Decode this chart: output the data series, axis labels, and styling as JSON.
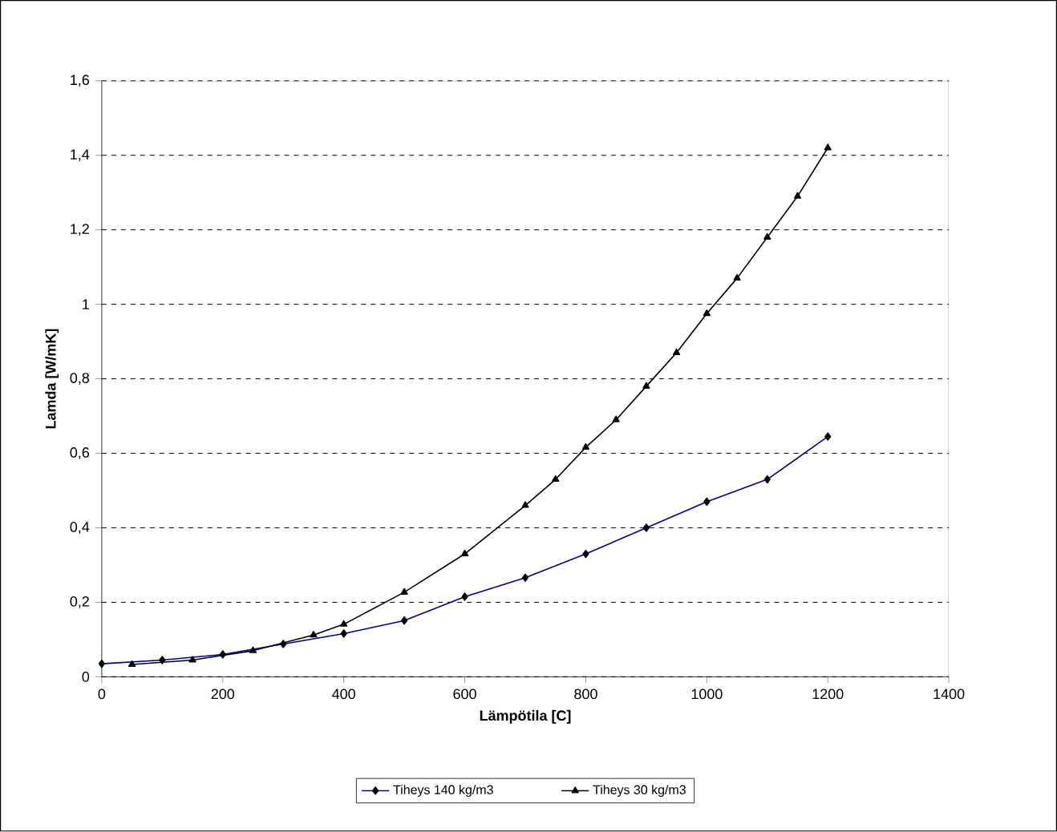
{
  "chart_data": {
    "type": "line",
    "xlabel": "Lämpötila [C]",
    "ylabel": "Lamda [W/mK]",
    "xlim": [
      0,
      1400
    ],
    "xticks": [
      0,
      200,
      400,
      600,
      800,
      1000,
      1200,
      1400
    ],
    "ylim": [
      0,
      1.6
    ],
    "yticks": [
      0,
      {
        "value": 0.2,
        "label": "0,2"
      },
      {
        "value": 0.4,
        "label": "0,4"
      },
      {
        "value": 0.6,
        "label": "0,6"
      },
      {
        "value": 0.8,
        "label": "0,8"
      },
      1,
      {
        "value": 1.2,
        "label": "1,2"
      },
      {
        "value": 1.4,
        "label": "1,4"
      },
      {
        "value": 1.6,
        "label": "1,6"
      }
    ],
    "grid": "y",
    "legend": "bottom",
    "series": [
      {
        "name": "Tiheys 140 kg/m3",
        "color": "#000080",
        "marker": "diamond",
        "x": [
          0,
          100,
          200,
          300,
          400,
          500,
          600,
          700,
          800,
          900,
          1000,
          1100,
          1200
        ],
        "values": [
          0.035,
          0.045,
          0.06,
          0.088,
          0.116,
          0.151,
          0.215,
          0.266,
          0.33,
          0.4,
          0.47,
          0.53,
          0.645
        ]
      },
      {
        "name": "Tiheys 30 kg/m3",
        "color": "#000000",
        "marker": "triangle",
        "x": [
          50,
          150,
          250,
          350,
          400,
          500,
          600,
          700,
          750,
          800,
          850,
          900,
          950,
          1000,
          1050,
          1100,
          1150,
          1200
        ],
        "values": [
          0.033,
          0.045,
          0.07,
          0.112,
          0.141,
          0.227,
          0.33,
          0.46,
          0.53,
          0.616,
          0.69,
          0.78,
          0.87,
          0.975,
          1.07,
          1.18,
          1.29,
          1.42
        ]
      }
    ]
  }
}
